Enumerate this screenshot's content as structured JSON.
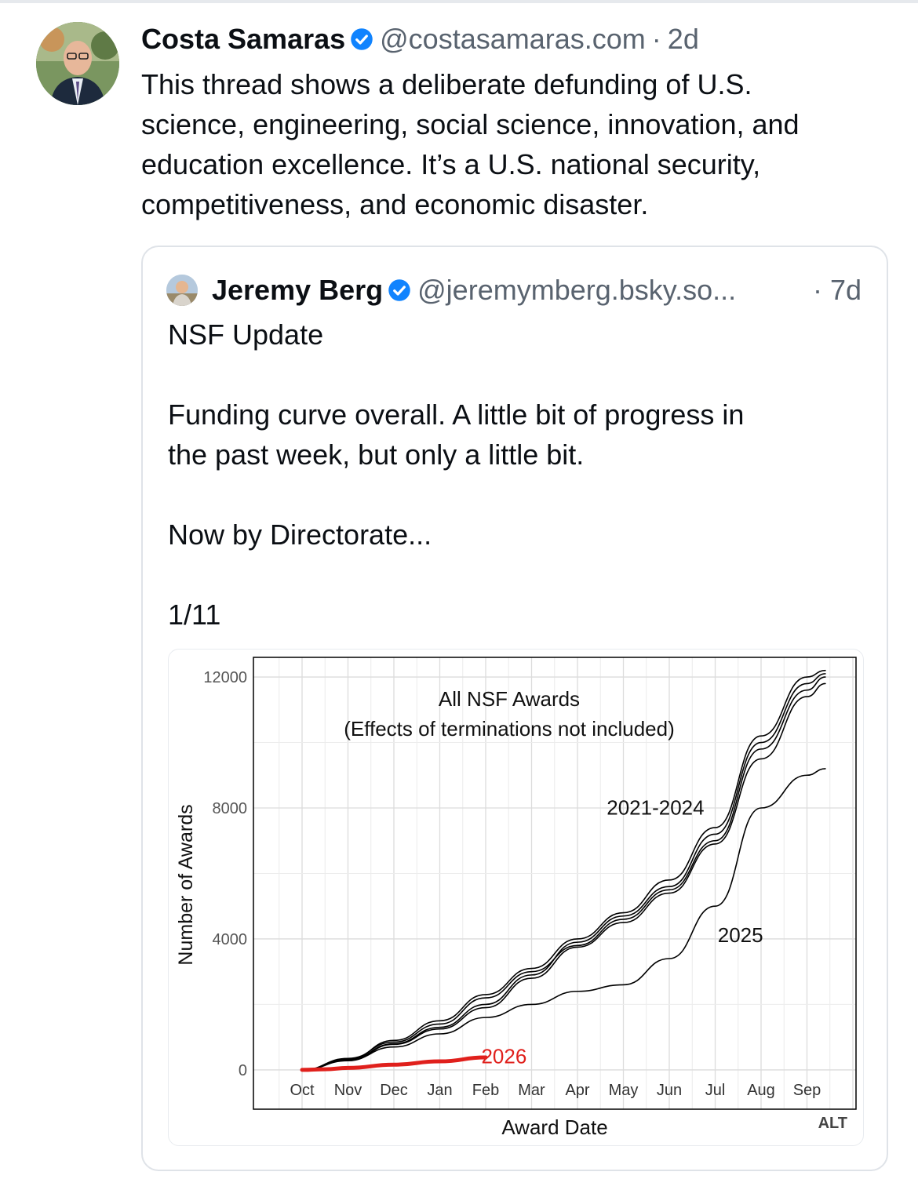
{
  "post": {
    "author_name": "Costa Samaras",
    "handle": "@costasamaras.com",
    "separator": "·",
    "time": "2d",
    "text_lines": [
      "This thread shows a deliberate defunding of U.S.",
      "science, engineering, social science, innovation, and",
      "education excellence. It’s a U.S. national security,",
      "competitiveness, and economic disaster."
    ]
  },
  "quote": {
    "author_name": "Jeremy Berg",
    "handle": "@jeremymberg.bsky.so...",
    "time": "· 7d",
    "text_lines": [
      "NSF Update",
      "Funding curve overall. A little bit of progress in",
      "the past week, but only a little bit.",
      "Now by Directorate...",
      "1/11"
    ],
    "alt_label": "ALT"
  },
  "chart_data": {
    "type": "line",
    "title": "All NSF Awards",
    "subtitle": "(Effects of terminations not included)",
    "xlabel": "Award Date",
    "ylabel": "Number of Awards",
    "x_ticks": [
      "Oct",
      "Nov",
      "Dec",
      "Jan",
      "Feb",
      "Mar",
      "Apr",
      "May",
      "Jun",
      "Jul",
      "Aug",
      "Sep"
    ],
    "y_ticks": [
      0,
      4000,
      8000,
      12000
    ],
    "ylim": [
      -1200,
      12600
    ],
    "grid": true,
    "series": [
      {
        "name": "2021-2024",
        "color": "#000000",
        "x": [
          0,
          1,
          2,
          3,
          4,
          5,
          6,
          7,
          8,
          9,
          10,
          11,
          11.4
        ],
        "values": [
          0,
          300,
          800,
          1300,
          2000,
          2900,
          3900,
          4700,
          5600,
          7200,
          10000,
          11800,
          12100
        ]
      },
      {
        "name": "2021-2024",
        "color": "#000000",
        "x": [
          0,
          1,
          2,
          3,
          4,
          5,
          6,
          7,
          8,
          9,
          10,
          11,
          11.4
        ],
        "values": [
          0,
          350,
          850,
          1400,
          2200,
          3000,
          3800,
          4600,
          5500,
          7000,
          9800,
          11600,
          12000
        ]
      },
      {
        "name": "2021-2024",
        "color": "#000000",
        "x": [
          0,
          1,
          2,
          3,
          4,
          5,
          6,
          7,
          8,
          9,
          10,
          11,
          11.4
        ],
        "values": [
          0,
          280,
          780,
          1250,
          1900,
          2800,
          3750,
          4500,
          5400,
          6900,
          9500,
          11400,
          11800
        ]
      },
      {
        "name": "2021-2024",
        "color": "#000000",
        "x": [
          0,
          1,
          2,
          3,
          4,
          5,
          6,
          7,
          8,
          9,
          10,
          11,
          11.4
        ],
        "values": [
          0,
          320,
          900,
          1500,
          2300,
          3100,
          4000,
          4800,
          5800,
          7400,
          10200,
          12000,
          12200
        ]
      },
      {
        "name": "2025",
        "color": "#000000",
        "x": [
          0,
          1,
          2,
          3,
          4,
          5,
          6,
          7,
          8,
          9,
          10,
          11,
          11.4
        ],
        "values": [
          0,
          300,
          700,
          1100,
          1600,
          2000,
          2400,
          2600,
          3400,
          5000,
          8000,
          9000,
          9200
        ]
      },
      {
        "name": "2026",
        "color": "#e0201c",
        "x": [
          0,
          0.5,
          1,
          2,
          3,
          4
        ],
        "values": [
          0,
          20,
          60,
          160,
          260,
          380
        ]
      }
    ]
  }
}
